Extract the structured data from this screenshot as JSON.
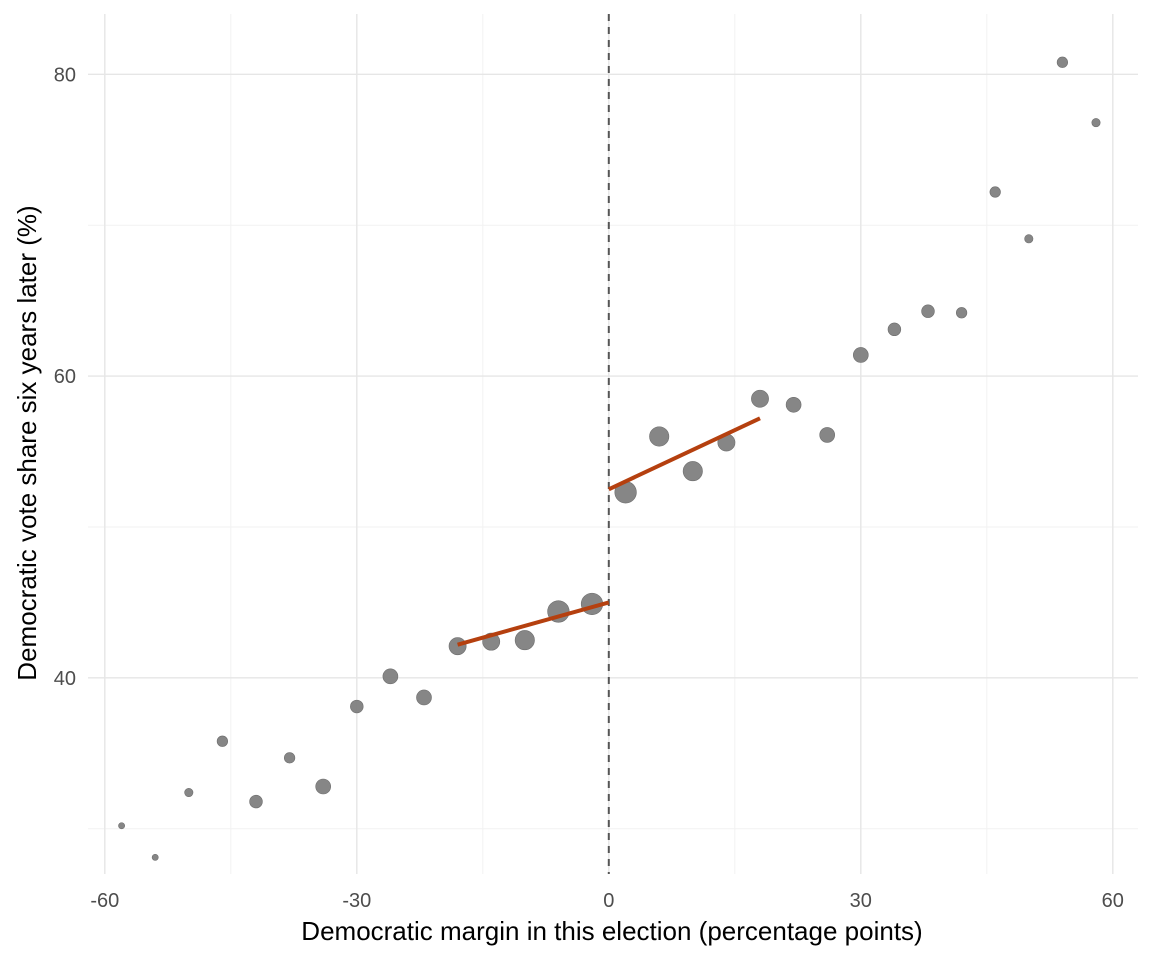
{
  "chart_data": {
    "type": "scatter",
    "title": "",
    "xlabel": "Democratic margin in this election (percentage points)",
    "ylabel": "Democratic vote share six years later (%)",
    "xlim": [
      -62,
      63
    ],
    "ylim": [
      27,
      84
    ],
    "x_major_ticks": [
      -60,
      -30,
      0,
      30,
      60
    ],
    "x_tick_labels": [
      "-60",
      "-30",
      "0",
      "30",
      "60"
    ],
    "x_minor_ticks": [
      -45,
      -15,
      15,
      45
    ],
    "y_major_ticks": [
      40,
      60,
      80
    ],
    "y_tick_labels": [
      "40",
      "60",
      "80"
    ],
    "y_minor_ticks": [
      30,
      50,
      70
    ],
    "grid": true,
    "cutoff": {
      "x": 0,
      "style": "dashed",
      "color": "#555555"
    },
    "point_color": "#808080",
    "fit_color": "#b5400f",
    "points": [
      {
        "x": -58,
        "y": 30.2,
        "size": 1
      },
      {
        "x": -54,
        "y": 28.1,
        "size": 1
      },
      {
        "x": -50,
        "y": 32.4,
        "size": 2
      },
      {
        "x": -46,
        "y": 35.8,
        "size": 3
      },
      {
        "x": -42,
        "y": 31.8,
        "size": 4
      },
      {
        "x": -38,
        "y": 34.7,
        "size": 3
      },
      {
        "x": -34,
        "y": 32.8,
        "size": 5
      },
      {
        "x": -30,
        "y": 38.1,
        "size": 4
      },
      {
        "x": -26,
        "y": 40.1,
        "size": 5
      },
      {
        "x": -22,
        "y": 38.7,
        "size": 5
      },
      {
        "x": -18,
        "y": 42.1,
        "size": 6
      },
      {
        "x": -14,
        "y": 42.4,
        "size": 6
      },
      {
        "x": -10,
        "y": 42.5,
        "size": 7
      },
      {
        "x": -6,
        "y": 44.4,
        "size": 8
      },
      {
        "x": -2,
        "y": 44.9,
        "size": 8
      },
      {
        "x": 2,
        "y": 52.3,
        "size": 8
      },
      {
        "x": 6,
        "y": 56.0,
        "size": 7
      },
      {
        "x": 10,
        "y": 53.7,
        "size": 7
      },
      {
        "x": 14,
        "y": 55.6,
        "size": 6
      },
      {
        "x": 18,
        "y": 58.5,
        "size": 6
      },
      {
        "x": 22,
        "y": 58.1,
        "size": 5
      },
      {
        "x": 26,
        "y": 56.1,
        "size": 5
      },
      {
        "x": 30,
        "y": 61.4,
        "size": 5
      },
      {
        "x": 34,
        "y": 63.1,
        "size": 4
      },
      {
        "x": 38,
        "y": 64.3,
        "size": 4
      },
      {
        "x": 42,
        "y": 64.2,
        "size": 3
      },
      {
        "x": 46,
        "y": 72.2,
        "size": 3
      },
      {
        "x": 50,
        "y": 69.1,
        "size": 2
      },
      {
        "x": 54,
        "y": 80.8,
        "size": 3
      },
      {
        "x": 58,
        "y": 76.8,
        "size": 2
      }
    ],
    "fit_lines": [
      {
        "x": [
          -18,
          0
        ],
        "y": [
          42.2,
          45.0
        ]
      },
      {
        "x": [
          0,
          18
        ],
        "y": [
          52.5,
          57.2
        ]
      }
    ]
  }
}
